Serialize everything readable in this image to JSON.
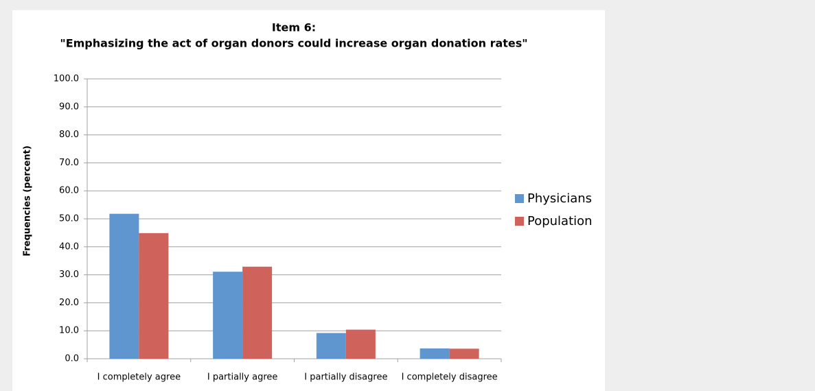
{
  "chart_data": {
    "type": "bar",
    "title": "Item 6:",
    "subtitle": "\"Emphasizing the act of organ donors could increase organ donation rates\"",
    "ylabel": "Frequencies (percent)",
    "categories": [
      "I completely agree",
      "I partially agree",
      "I partially disagree",
      "I completely disagree"
    ],
    "series": [
      {
        "name": "Physicians",
        "color": "#6096cf",
        "values": [
          51.8,
          31.1,
          9.2,
          3.7
        ]
      },
      {
        "name": "Population",
        "color": "#cf635c",
        "values": [
          44.9,
          32.9,
          10.4,
          3.6
        ]
      }
    ],
    "ylim": [
      0,
      100
    ],
    "yticks": [
      {
        "value": 0,
        "label": "0.0"
      },
      {
        "value": 10,
        "label": "10.0"
      },
      {
        "value": 20,
        "label": "20.0"
      },
      {
        "value": 30,
        "label": "30.0"
      },
      {
        "value": 40,
        "label": "40.0"
      },
      {
        "value": 50,
        "label": "50.0"
      },
      {
        "value": 60,
        "label": "60.0"
      },
      {
        "value": 70,
        "label": "70.0"
      },
      {
        "value": 80,
        "label": "80.0"
      },
      {
        "value": 90,
        "label": "90.0"
      },
      {
        "value": 100,
        "label": "100.0"
      }
    ],
    "grid": true,
    "legend": "right"
  }
}
